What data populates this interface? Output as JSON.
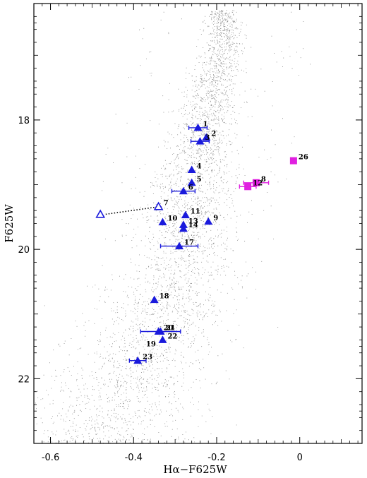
{
  "chart_data": {
    "type": "scatter",
    "title": "",
    "xlabel": "Hα−F625W",
    "ylabel": "F625W",
    "xlim": [
      -0.64,
      0.15
    ],
    "ylim": [
      23.0,
      16.2
    ],
    "y_inverted": true,
    "x_ticks": [
      -0.6,
      -0.4,
      -0.2,
      0
    ],
    "x_tick_labels": [
      "-0.6",
      "-0.4",
      "-0.2",
      "0"
    ],
    "y_ticks": [
      18,
      20,
      22
    ],
    "y_tick_labels": [
      "18",
      "20",
      "22"
    ],
    "grid": false,
    "legend": "none",
    "colors": {
      "background_cloud": "#8a8a8a",
      "triangles": "#1a1adc",
      "squares": "#e020e0",
      "frame": "#000000"
    },
    "background_ridge": [
      {
        "y": 16.3,
        "x": -0.19
      },
      {
        "y": 16.6,
        "x": -0.185
      },
      {
        "y": 17.0,
        "x": -0.19
      },
      {
        "y": 17.5,
        "x": -0.21
      },
      {
        "y": 18.0,
        "x": -0.23
      },
      {
        "y": 18.5,
        "x": -0.245
      },
      {
        "y": 19.0,
        "x": -0.26
      },
      {
        "y": 19.5,
        "x": -0.27
      },
      {
        "y": 20.0,
        "x": -0.28
      },
      {
        "y": 20.5,
        "x": -0.3
      },
      {
        "y": 21.0,
        "x": -0.33
      },
      {
        "y": 21.5,
        "x": -0.37
      },
      {
        "y": 22.0,
        "x": -0.41
      },
      {
        "y": 22.5,
        "x": -0.45
      },
      {
        "y": 23.0,
        "x": -0.49
      }
    ],
    "series": [
      {
        "marker": "filled-triangle",
        "color": "#1a1adc",
        "points": [
          {
            "label": "1",
            "x": -0.245,
            "y": 18.12,
            "xerr": 0.022
          },
          {
            "label": "2",
            "x": -0.225,
            "y": 18.27,
            "xerr": 0.0
          },
          {
            "label": "3",
            "x": -0.24,
            "y": 18.33,
            "xerr": 0.022
          },
          {
            "label": "4",
            "x": -0.26,
            "y": 18.77,
            "xerr": 0.0
          },
          {
            "label": "5",
            "x": -0.26,
            "y": 18.97,
            "xerr": 0.0
          },
          {
            "label": "6",
            "x": -0.28,
            "y": 19.1,
            "xerr": 0.028
          },
          {
            "label": "9",
            "x": -0.22,
            "y": 19.57,
            "xerr": 0.0
          },
          {
            "label": "10",
            "x": -0.33,
            "y": 19.58,
            "xerr": 0.0
          },
          {
            "label": "11",
            "x": -0.275,
            "y": 19.47,
            "xerr": 0.0
          },
          {
            "label": "13",
            "x": -0.28,
            "y": 19.62,
            "xerr": 0.0
          },
          {
            "label": "14",
            "x": -0.28,
            "y": 19.68,
            "xerr": 0.0
          },
          {
            "label": "17",
            "x": -0.29,
            "y": 19.95,
            "xerr": 0.045
          },
          {
            "label": "18",
            "x": -0.35,
            "y": 20.78,
            "xerr": 0.0
          },
          {
            "label": "20",
            "x": -0.34,
            "y": 21.27,
            "xerr": 0.0
          },
          {
            "label": "21",
            "x": -0.335,
            "y": 21.27,
            "xerr": 0.048
          },
          {
            "label": "22",
            "x": -0.33,
            "y": 21.4,
            "xerr": 0.0
          },
          {
            "label": "23",
            "x": -0.39,
            "y": 21.72,
            "xerr": 0.02
          }
        ]
      },
      {
        "marker": "open-triangle",
        "color": "#1a1adc",
        "points": [
          {
            "label": "7",
            "x": -0.34,
            "y": 19.34
          },
          {
            "label": "",
            "x": -0.48,
            "y": 19.46
          }
        ],
        "connector": "dotted"
      },
      {
        "marker": "filled-square",
        "color": "#e020e0",
        "points": [
          {
            "label": "8",
            "x": -0.105,
            "y": 18.97,
            "xerr": 0.03
          },
          {
            "label": "12",
            "x": -0.125,
            "y": 19.03,
            "xerr": 0.02
          },
          {
            "label": "26",
            "x": -0.015,
            "y": 18.63,
            "xerr": 0.0
          }
        ]
      }
    ],
    "unmarked_labels": [
      {
        "label": "19",
        "x": -0.37,
        "y": 21.5
      }
    ]
  }
}
